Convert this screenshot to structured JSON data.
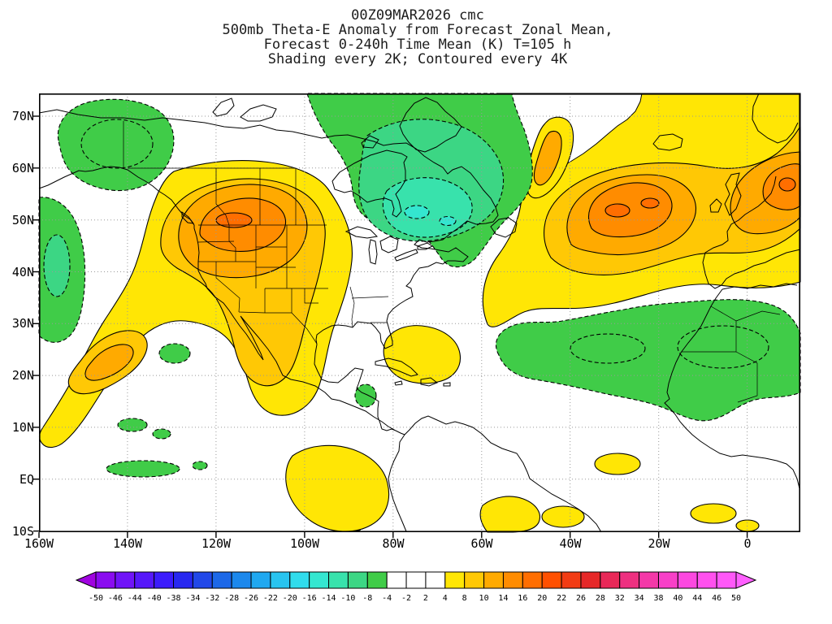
{
  "title": {
    "line1": "00Z09MAR2026 cmc",
    "line2": "500mb Theta-E Anomaly from Forecast Zonal Mean,",
    "line3": "Forecast 0-240h Time Mean (K) T=105 h",
    "line4": "Shading every 2K; Contoured every 4K"
  },
  "map": {
    "lat_labels": [
      "70N",
      "60N",
      "50N",
      "40N",
      "30N",
      "20N",
      "10N",
      "EQ",
      "10S"
    ],
    "lon_labels": [
      "160W",
      "140W",
      "120W",
      "100W",
      "80W",
      "60W",
      "40W",
      "20W",
      "0"
    ]
  },
  "colorbar": {
    "tick_labels": [
      "-50",
      "-46",
      "-44",
      "-40",
      "-38",
      "-34",
      "-32",
      "-28",
      "-26",
      "-22",
      "-20",
      "-16",
      "-14",
      "-10",
      "-8",
      "-4",
      "-2",
      "2",
      "4",
      "8",
      "10",
      "14",
      "16",
      "20",
      "22",
      "26",
      "28",
      "32",
      "34",
      "38",
      "40",
      "44",
      "46",
      "50"
    ],
    "cell_colors": [
      "#8A0CF0",
      "#7014F8",
      "#5618FA",
      "#3C1CFC",
      "#2828F0",
      "#2248E8",
      "#1C68E8",
      "#1C88EC",
      "#20A8F0",
      "#28C4F0",
      "#30DCEC",
      "#34E6D0",
      "#38E2AC",
      "#3CD684",
      "#40CC48",
      "#FFFFFF",
      "#FFFFFF",
      "#FFFFFF",
      "#FFE605",
      "#FFC805",
      "#FFAA00",
      "#FF8C00",
      "#FF6E00",
      "#FF5000",
      "#F23C14",
      "#E62828",
      "#E82858",
      "#EE3080",
      "#F438A8",
      "#F840C8",
      "#FC48E0",
      "#FF50EE",
      "#FF58F8"
    ],
    "left_arrow_color": "#A004E0",
    "right_arrow_color": "#FF60FF"
  },
  "palette": {
    "yellow": "#FFE605",
    "gold": "#FFC805",
    "orange": "#FFAA00",
    "orange_deep": "#FF8C00",
    "red_orange": "#FF6E00",
    "red_core": "#FF5000",
    "green": "#40CC48",
    "green_spring": "#3CD684",
    "teal": "#38E2AC",
    "cyan": "#34E6D0",
    "white": "#FFFFFF",
    "grid": "#999999"
  },
  "chart_data": {
    "type": "heatmap",
    "title": "500mb Theta-E Anomaly from Forecast Zonal Mean, Forecast 0-240h Time Mean (K) T=105 h",
    "model": "cmc",
    "model_run": "00Z09MAR2026",
    "valid": "T=105 h",
    "shading_interval_K": 2,
    "contour_interval_K": 4,
    "contour_style": {
      "positive": "solid black",
      "negative": "dashed black"
    },
    "lon_ticks": [
      "160W",
      "140W",
      "120W",
      "100W",
      "80W",
      "60W",
      "40W",
      "20W",
      "0"
    ],
    "lat_ticks": [
      "70N",
      "60N",
      "50N",
      "40N",
      "30N",
      "20N",
      "10N",
      "EQ",
      "10S"
    ],
    "lon_range": [
      "160W",
      "12E"
    ],
    "lat_range": [
      "10S",
      "75N"
    ],
    "colorbar_levels": [
      -50,
      -46,
      -44,
      -40,
      -38,
      -34,
      -32,
      -28,
      -26,
      -22,
      -20,
      -16,
      -14,
      -10,
      -8,
      -4,
      -2,
      2,
      4,
      8,
      10,
      14,
      16,
      20,
      22,
      26,
      28,
      32,
      34,
      38,
      40,
      44,
      46,
      50
    ],
    "anomaly_features": [
      {
        "label": "Pacific Northwest / northern Rockies ridge",
        "sign": "positive",
        "approx_peak_K": 18,
        "approx_location": "115W 48N"
      },
      {
        "label": "Southwest US and Mexico band",
        "sign": "positive",
        "approx_peak_K": 10,
        "approx_location": "105W 30N"
      },
      {
        "label": "Eastern Pacific subtropical band",
        "sign": "positive",
        "approx_peak_K": 12,
        "approx_location": "140W 25N"
      },
      {
        "label": "Central and eastern Canada trough",
        "sign": "negative",
        "approx_peak_K": -14,
        "approx_location": "75W 50N"
      },
      {
        "label": "Alaska / Gulf of Alaska",
        "sign": "negative",
        "approx_peak_K": -8,
        "approx_location": "150W 62N"
      },
      {
        "label": "Eastern Pacific near the date line edge",
        "sign": "negative",
        "approx_peak_K": -10,
        "approx_location": "158W 35N"
      },
      {
        "label": "North Atlantic ridge south of Iceland",
        "sign": "positive",
        "approx_peak_K": 20,
        "approx_location": "30W 55N"
      },
      {
        "label": "Scandinavia / North Sea ridge",
        "sign": "positive",
        "approx_peak_K": 18,
        "approx_location": "5E 52N"
      },
      {
        "label": "Subtropical Atlantic and northwest Africa",
        "sign": "negative",
        "approx_peak_K": -8,
        "approx_location": "20W 25N"
      },
      {
        "label": "Caribbean patch",
        "sign": "positive",
        "approx_peak_K": 6,
        "approx_location": "70W 20N"
      },
      {
        "label": "Northern South America patch",
        "sign": "positive",
        "approx_peak_K": 6,
        "approx_location": "95W 5N"
      }
    ]
  }
}
